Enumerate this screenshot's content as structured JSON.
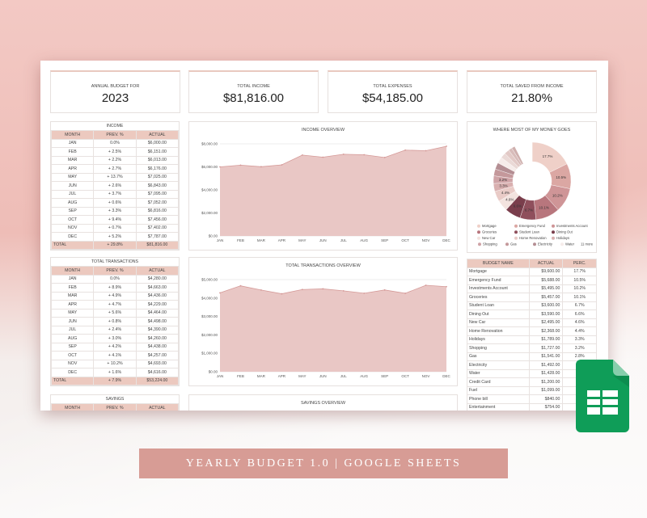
{
  "summary": [
    {
      "label": "ANNUAL BUDGET FOR",
      "value": "2023"
    },
    {
      "label": "TOTAL INCOME",
      "value": "$81,816.00"
    },
    {
      "label": "TOTAL EXPENSES",
      "value": "$54,185.00"
    },
    {
      "label": "TOTAL SAVED FROM INCOME",
      "value": "21.80%"
    }
  ],
  "columns": [
    "MONTH",
    "PREV. %",
    "ACTUAL"
  ],
  "income": {
    "title": "INCOME",
    "rows": [
      [
        "JAN",
        "0.0%",
        "$6,000.00"
      ],
      [
        "FEB",
        "+ 2.5%",
        "$6,151.00"
      ],
      [
        "MAR",
        "+ 2.2%",
        "$6,013.00"
      ],
      [
        "APR",
        "+ 2.7%",
        "$6,176.00"
      ],
      [
        "MAY",
        "+ 13.7%",
        "$7,025.00"
      ],
      [
        "JUN",
        "+ 2.6%",
        "$6,843.00"
      ],
      [
        "JUL",
        "+ 3.7%",
        "$7,095.00"
      ],
      [
        "AUG",
        "+ 0.6%",
        "$7,052.00"
      ],
      [
        "SEP",
        "+ 3.3%",
        "$6,816.00"
      ],
      [
        "OCT",
        "+ 9.4%",
        "$7,456.00"
      ],
      [
        "NOV",
        "+ 0.7%",
        "$7,402.00"
      ],
      [
        "DEC",
        "+ 5.2%",
        "$7,787.00"
      ]
    ],
    "total": [
      "TOTAL",
      "+ 29.8%",
      "$81,816.00"
    ]
  },
  "transactions": {
    "title": "TOTAL TRANSACTIONS",
    "rows": [
      [
        "JAN",
        "0.0%",
        "$4,280.00"
      ],
      [
        "FEB",
        "+ 8.9%",
        "$4,663.00"
      ],
      [
        "MAR",
        "+ 4.9%",
        "$4,436.00"
      ],
      [
        "APR",
        "+ 4.7%",
        "$4,229.00"
      ],
      [
        "MAY",
        "+ 5.6%",
        "$4,464.00"
      ],
      [
        "JUN",
        "+ 0.8%",
        "$4,498.00"
      ],
      [
        "JUL",
        "+ 2.4%",
        "$4,390.00"
      ],
      [
        "AUG",
        "+ 3.0%",
        "$4,260.00"
      ],
      [
        "SEP",
        "+ 4.2%",
        "$4,438.00"
      ],
      [
        "OCT",
        "+ 4.1%",
        "$4,257.00"
      ],
      [
        "NOV",
        "+ 10.2%",
        "$4,693.00"
      ],
      [
        "DEC",
        "+ 1.6%",
        "$4,616.00"
      ]
    ],
    "total": [
      "TOTAL",
      "+ 7.9%",
      "$53,224.00"
    ]
  },
  "savings": {
    "title": "SAVINGS"
  },
  "savings_chart": {
    "title": "SAVINGS OVERVIEW"
  },
  "budget": {
    "columns": [
      "BUDGET NAME",
      "ACTUAL",
      "PERC."
    ],
    "rows": [
      [
        "Mortgage",
        "$9,600.00",
        "17.7%"
      ],
      [
        "Emergency Fund",
        "$5,688.00",
        "10.5%"
      ],
      [
        "Investments Account",
        "$5,495.00",
        "10.2%"
      ],
      [
        "Groceries",
        "$5,457.00",
        "10.1%"
      ],
      [
        "Student Loan",
        "$3,600.00",
        "6.7%"
      ],
      [
        "Dining Out",
        "$3,590.00",
        "6.6%"
      ],
      [
        "New Car",
        "$2,495.00",
        "4.6%"
      ],
      [
        "Home Renovation",
        "$2,368.00",
        "4.4%"
      ],
      [
        "Holidays",
        "$1,789.00",
        "3.3%"
      ],
      [
        "Shopping",
        "$1,727.00",
        "3.2%"
      ],
      [
        "Gas",
        "$1,541.00",
        "2.8%"
      ],
      [
        "Electricity",
        "$1,492.00",
        ""
      ],
      [
        "Water",
        "$1,428.00",
        ""
      ],
      [
        "Credit Card",
        "$1,200.00",
        ""
      ],
      [
        "Fuel",
        "$1,099.00",
        ""
      ],
      [
        "Phone bill",
        "$840.00",
        ""
      ],
      [
        "Entertainment",
        "$754.00",
        ""
      ]
    ]
  },
  "banner": "YEARLY BUDGET 1.0 | GOOGLE SHEETS",
  "icons": {
    "app": "google-sheets-icon"
  },
  "colors": {
    "accent": "#ecc9bf",
    "area_fill": "#e9c7c5",
    "line": "#d59a98",
    "banner": "#d79c95",
    "sheets_green": "#0f9d58"
  },
  "chart_data": [
    {
      "type": "area",
      "title": "INCOME OVERVIEW",
      "categories": [
        "JAN",
        "FEB",
        "MAR",
        "APR",
        "MAY",
        "JUN",
        "JUL",
        "AUG",
        "SEP",
        "OCT",
        "NOV",
        "DEC"
      ],
      "values": [
        6000,
        6151,
        6013,
        6176,
        7025,
        6843,
        7095,
        7052,
        6816,
        7456,
        7402,
        7787
      ],
      "ylim": [
        0,
        8000
      ],
      "yticks": [
        "$0.00",
        "$2,000.00",
        "$4,000.00",
        "$6,000.00",
        "$8,000.00"
      ],
      "grid": true
    },
    {
      "type": "area",
      "title": "TOTAL TRANSACTIONS OVERVIEW",
      "categories": [
        "JAN",
        "FEB",
        "MAR",
        "APR",
        "MAY",
        "JUN",
        "JUL",
        "AUG",
        "SEP",
        "OCT",
        "NOV",
        "DEC"
      ],
      "values": [
        4280,
        4663,
        4436,
        4229,
        4464,
        4498,
        4390,
        4260,
        4438,
        4257,
        4693,
        4616
      ],
      "ylim": [
        0,
        5000
      ],
      "yticks": [
        "$0.00",
        "$1,000.00",
        "$2,000.00",
        "$3,000.00",
        "$4,000.00",
        "$5,000.00"
      ],
      "grid": true
    },
    {
      "type": "pie",
      "title": "WHERE MOST OF MY MONEY GOES",
      "donut": true,
      "total": 54185,
      "labels": [
        "Mortgage",
        "Emergency Fund",
        "Investments Account",
        "Groceries",
        "Student Loan",
        "Dining Out",
        "New Car",
        "Home Renovation",
        "Holidays",
        "Shopping",
        "Gas",
        "Electricity",
        "Water",
        "Credit Card",
        "Fuel",
        "Phone bill",
        "Entertainment"
      ],
      "values": [
        9600,
        5688,
        5495,
        5457,
        3600,
        3590,
        2495,
        2368,
        1789,
        1727,
        1541,
        1492,
        1428,
        1200,
        1099,
        840,
        754
      ],
      "slice_labels": [
        "17.7%",
        "10.5%",
        "10.2%",
        "10.1%",
        "6.7%",
        "6.6%",
        "4.6%",
        "4.4%",
        "3.3%",
        "3.2%",
        "",
        "",
        "",
        "",
        "",
        "",
        ""
      ],
      "legend": [
        "Mortgage",
        "Emergency Fund",
        "Investments Account",
        "Groceries",
        "Student Loan",
        "Dining Out",
        "New Car",
        "Home Renovation",
        "Holidays",
        "Shopping",
        "Gas",
        "Electricity",
        "Water"
      ],
      "legend_more": "11 more",
      "legend_position": "bottom",
      "colors": [
        "#efd0c8",
        "#dba7a3",
        "#cf9597",
        "#b8767d",
        "#8f4f5c",
        "#7a3e4c",
        "#f3e3df",
        "#e9cbc7",
        "#d9b0b0",
        "#cfa3a6",
        "#c4989b",
        "#b48e93",
        "#f6ecea",
        "#ead9d6",
        "#e2c9c6",
        "#d8bcba",
        "#cfb0ae"
      ]
    }
  ]
}
